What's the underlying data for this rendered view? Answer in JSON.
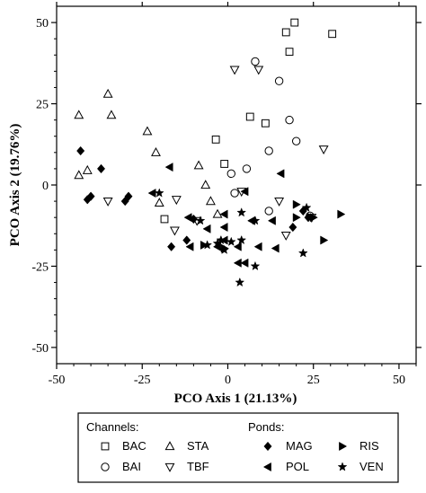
{
  "chart_data": {
    "type": "scatter",
    "title": "",
    "xlabel": "PCO Axis 1 (21.13%)",
    "ylabel": "PCO Axis 2 (19.76%)",
    "xlim": [
      -50,
      50
    ],
    "ylim": [
      -50,
      50
    ],
    "xticks": [
      -50,
      -25,
      0,
      25,
      50
    ],
    "yticks": [
      -50,
      -25,
      0,
      25,
      50
    ],
    "grid": false,
    "legend": {
      "placement": "bottom",
      "groups": [
        {
          "title": "Channels:",
          "entries": [
            "BAC",
            "BAI",
            "STA",
            "TBF"
          ]
        },
        {
          "title": "Ponds:",
          "entries": [
            "MAG",
            "POL",
            "RIS",
            "VEN"
          ]
        }
      ]
    },
    "series": [
      {
        "name": "BAC",
        "marker": "square-open",
        "points": [
          [
            19.5,
            50
          ],
          [
            17,
            47
          ],
          [
            18,
            41
          ],
          [
            30.5,
            46.5
          ],
          [
            6.5,
            21
          ],
          [
            -3.5,
            14
          ],
          [
            -1,
            6.5
          ],
          [
            11,
            19
          ],
          [
            -18.5,
            -10.5
          ]
        ]
      },
      {
        "name": "BAI",
        "marker": "circle-open",
        "points": [
          [
            8,
            38
          ],
          [
            15,
            32
          ],
          [
            18,
            20
          ],
          [
            12,
            10.5
          ],
          [
            20,
            13.5
          ],
          [
            1,
            3.5
          ],
          [
            5.5,
            5
          ],
          [
            2,
            -2.5
          ],
          [
            12,
            -8
          ],
          [
            24,
            -9.5
          ]
        ]
      },
      {
        "name": "STA",
        "marker": "triangle-up-open",
        "points": [
          [
            -35,
            28
          ],
          [
            -43.5,
            21.5
          ],
          [
            -34,
            21.5
          ],
          [
            -23.5,
            16.5
          ],
          [
            -21,
            10
          ],
          [
            -41,
            4.5
          ],
          [
            -43.5,
            3
          ],
          [
            -8.5,
            6
          ],
          [
            -6.5,
            0
          ],
          [
            -5,
            -5
          ],
          [
            -3,
            -9
          ],
          [
            -20,
            -5.5
          ]
        ]
      },
      {
        "name": "TBF",
        "marker": "triangle-down-open",
        "points": [
          [
            2,
            35.5
          ],
          [
            9,
            35.5
          ],
          [
            28,
            11
          ],
          [
            -35,
            -5
          ],
          [
            -15,
            -4.5
          ],
          [
            4,
            -2
          ],
          [
            15,
            -5
          ],
          [
            24.5,
            -10
          ],
          [
            -9,
            -11
          ],
          [
            -15.5,
            -14
          ],
          [
            17,
            -15.5
          ]
        ]
      },
      {
        "name": "MAG",
        "marker": "diamond-filled",
        "points": [
          [
            -43,
            10.5
          ],
          [
            -37,
            5
          ],
          [
            -40,
            -3.5
          ],
          [
            -41,
            -4.5
          ],
          [
            -30,
            -5
          ],
          [
            -29,
            -3.5
          ],
          [
            -10,
            -10.5
          ],
          [
            22,
            -8
          ],
          [
            23.5,
            -10
          ],
          [
            19,
            -13
          ],
          [
            -16.5,
            -19
          ],
          [
            -12,
            -17
          ]
        ]
      },
      {
        "name": "POL",
        "marker": "triangle-left-filled",
        "points": [
          [
            -17,
            5.5
          ],
          [
            15.5,
            3.5
          ],
          [
            5,
            -2
          ],
          [
            -1,
            -9
          ],
          [
            -11.5,
            -10
          ],
          [
            -1,
            -13
          ],
          [
            -6,
            -13.5
          ],
          [
            7,
            -11
          ],
          [
            13,
            -11
          ],
          [
            -1,
            -17
          ],
          [
            -3,
            -19
          ],
          [
            -11,
            -19
          ],
          [
            3,
            -19
          ],
          [
            9,
            -19
          ],
          [
            14,
            -19.5
          ],
          [
            5,
            -24
          ],
          [
            3,
            -24
          ],
          [
            -22,
            -2.5
          ]
        ]
      },
      {
        "name": "RIS",
        "marker": "triangle-right-filled",
        "points": [
          [
            33,
            -9
          ],
          [
            20,
            -6
          ],
          [
            20,
            -10
          ],
          [
            25,
            -10
          ],
          [
            28,
            -17
          ],
          [
            -7,
            -18.5
          ],
          [
            -1,
            -19.5
          ]
        ]
      },
      {
        "name": "VEN",
        "marker": "star-filled",
        "points": [
          [
            -20,
            -2.5
          ],
          [
            -8,
            -11
          ],
          [
            4,
            -8.5
          ],
          [
            8,
            -11
          ],
          [
            23,
            -7
          ],
          [
            -2,
            -17
          ],
          [
            1,
            -17.5
          ],
          [
            4,
            -17
          ],
          [
            -3,
            -18
          ],
          [
            -6,
            -18.5
          ],
          [
            -1,
            -20
          ],
          [
            22,
            -21
          ],
          [
            8,
            -25
          ],
          [
            3.5,
            -30
          ]
        ]
      }
    ]
  }
}
